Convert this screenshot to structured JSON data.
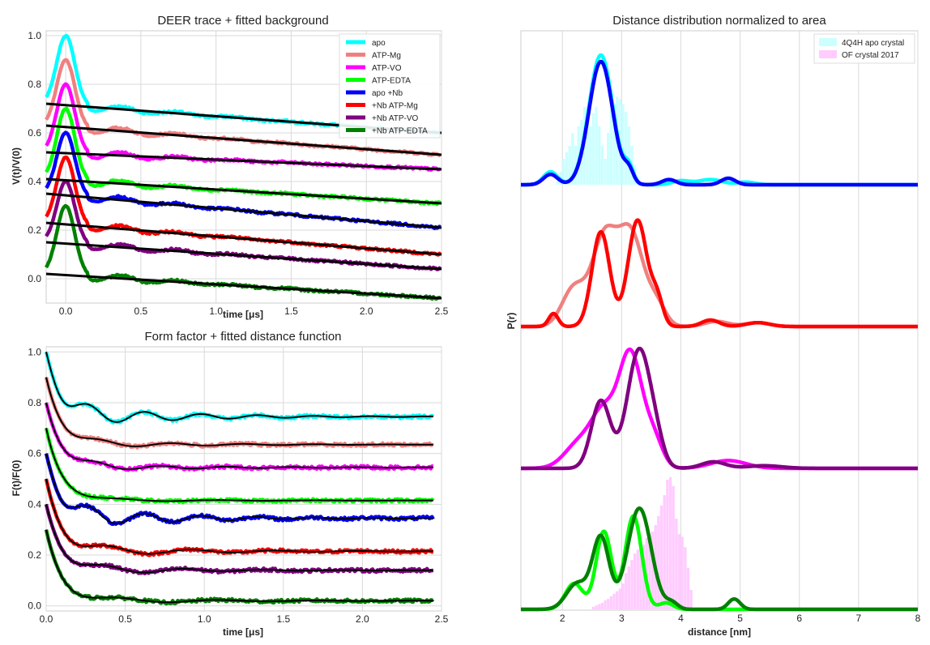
{
  "chart_data": [
    {
      "type": "line",
      "title": "DEER trace + fitted background",
      "xlabel": "time [μs]",
      "ylabel": "V(t)/V(0)",
      "xlim": [
        -0.13,
        2.5
      ],
      "ylim": [
        -0.1,
        1.02
      ],
      "xticks": [
        "0.0",
        "0.5",
        "1.0",
        "1.5",
        "2.0",
        "2.5"
      ],
      "yticks": [
        "0.0",
        "0.2",
        "0.4",
        "0.6",
        "0.8",
        "1.0"
      ],
      "legend_position": "top-right",
      "series": [
        {
          "name": "apo",
          "color": "#00ffff",
          "peak": 1.0,
          "baseline_start": 0.72,
          "baseline_end": 0.6,
          "mod_depth": 0.25
        },
        {
          "name": "ATP-Mg",
          "color": "#f08080",
          "peak": 0.9,
          "baseline_start": 0.63,
          "baseline_end": 0.51,
          "mod_depth": 0.27
        },
        {
          "name": "ATP-VO",
          "color": "#ff00ff",
          "peak": 0.8,
          "baseline_start": 0.52,
          "baseline_end": 0.45,
          "mod_depth": 0.3
        },
        {
          "name": "ATP-EDTA",
          "color": "#00ff00",
          "peak": 0.7,
          "baseline_start": 0.41,
          "baseline_end": 0.31,
          "mod_depth": 0.3
        },
        {
          "name": "apo +Nb",
          "color": "#0000ff",
          "peak": 0.6,
          "baseline_start": 0.35,
          "baseline_end": 0.21,
          "mod_depth": 0.27
        },
        {
          "name": "+Nb ATP-Mg",
          "color": "#ff0000",
          "peak": 0.5,
          "baseline_start": 0.23,
          "baseline_end": 0.1,
          "mod_depth": 0.3
        },
        {
          "name": "+Nb ATP-VO",
          "color": "#800080",
          "peak": 0.4,
          "baseline_start": 0.15,
          "baseline_end": 0.04,
          "mod_depth": 0.27
        },
        {
          "name": "+Nb ATP-EDTA",
          "color": "#008000",
          "peak": 0.3,
          "baseline_start": 0.02,
          "baseline_end": -0.08,
          "mod_depth": 0.29
        }
      ],
      "fit_color": "#000000",
      "fit_label": "fitted background"
    },
    {
      "type": "line",
      "title": "Form factor + fitted distance function",
      "xlabel": "time [μs]",
      "ylabel": "F(t)/F(0)",
      "xlim": [
        0.0,
        2.5
      ],
      "ylim": [
        -0.02,
        1.02
      ],
      "xticks": [
        "0.0",
        "0.5",
        "1.0",
        "1.5",
        "2.0",
        "2.5"
      ],
      "yticks": [
        "0.0",
        "0.2",
        "0.4",
        "0.6",
        "0.8",
        "1.0"
      ],
      "series": [
        {
          "name": "apo",
          "color": "#00ffff",
          "start": 1.0,
          "plateau": 0.745,
          "osc_freq": 2.8,
          "osc_amp": 0.05
        },
        {
          "name": "ATP-Mg",
          "color": "#f08080",
          "start": 0.9,
          "plateau": 0.635,
          "osc_freq": 2.2,
          "osc_amp": 0.02
        },
        {
          "name": "ATP-VO",
          "color": "#ff00ff",
          "start": 0.8,
          "plateau": 0.545,
          "osc_freq": 2.4,
          "osc_amp": 0.02
        },
        {
          "name": "ATP-EDTA",
          "color": "#00ff00",
          "start": 0.7,
          "plateau": 0.415,
          "osc_freq": 1.6,
          "osc_amp": 0.01
        },
        {
          "name": "apo +Nb",
          "color": "#0000ff",
          "start": 0.6,
          "plateau": 0.345,
          "osc_freq": 2.8,
          "osc_amp": 0.05
        },
        {
          "name": "+Nb ATP-Mg",
          "color": "#ff0000",
          "start": 0.5,
          "plateau": 0.215,
          "osc_freq": 1.9,
          "osc_amp": 0.03
        },
        {
          "name": "+Nb ATP-VO",
          "color": "#800080",
          "start": 0.4,
          "plateau": 0.14,
          "osc_freq": 2.0,
          "osc_amp": 0.025
        },
        {
          "name": "+Nb ATP-EDTA",
          "color": "#008000",
          "start": 0.3,
          "plateau": 0.02,
          "osc_freq": 1.6,
          "osc_amp": 0.02
        }
      ],
      "fit_color": "#000000",
      "fit_label": "fitted distance function"
    },
    {
      "type": "line",
      "title": "Distance distribution normalized to area",
      "xlabel": "distance [nm]",
      "ylabel": "P(r)",
      "xlim": [
        1.3,
        8.0
      ],
      "xticks": [
        "2",
        "3",
        "4",
        "5",
        "6",
        "7",
        "8"
      ],
      "legend_position": "top-right",
      "legend": [
        "4Q4H apo crystal",
        "OF crystal 2017"
      ],
      "crystal_colors": [
        "#ccffff",
        "#ffccff"
      ],
      "panels": [
        {
          "series": [
            {
              "name": "apo",
              "color": "#00ffff",
              "peaks": [
                [
                  1.8,
                  0.12,
                  0.1
                ],
                [
                  2.65,
                  0.2,
                  1.0
                ],
                [
                  3.12,
                  0.08,
                  0.12
                ],
                [
                  4.0,
                  0.15,
                  0.03
                ],
                [
                  4.5,
                  0.2,
                  0.04
                ],
                [
                  5.1,
                  0.15,
                  0.02
                ]
              ]
            },
            {
              "name": "apo +Nb",
              "color": "#0000ff",
              "peaks": [
                [
                  1.8,
                  0.12,
                  0.08
                ],
                [
                  2.65,
                  0.2,
                  0.95
                ],
                [
                  3.12,
                  0.08,
                  0.1
                ],
                [
                  3.8,
                  0.12,
                  0.04
                ],
                [
                  4.8,
                  0.12,
                  0.05
                ]
              ]
            }
          ],
          "crystal": {
            "name": "4Q4H apo crystal",
            "color": "#ccffff",
            "bins_start": 1.9,
            "bins_width": 0.05,
            "heights": [
              0.05,
              0.1,
              0.2,
              0.25,
              0.3,
              0.4,
              0.3,
              0.45,
              0.5,
              0.6,
              0.5,
              0.45,
              0.55,
              0.6,
              0.45,
              0.3,
              0.2,
              0.4,
              0.58,
              0.62,
              0.68,
              0.66,
              0.62,
              0.56,
              0.45,
              0.3,
              0.15,
              0.05
            ]
          }
        },
        {
          "series": [
            {
              "name": "ATP-Mg",
              "color": "#f08080",
              "peaks": [
                [
                  2.2,
                  0.2,
                  0.3
                ],
                [
                  2.7,
                  0.2,
                  0.65
                ],
                [
                  3.15,
                  0.22,
                  0.72
                ],
                [
                  3.6,
                  0.15,
                  0.15
                ],
                [
                  4.6,
                  0.2,
                  0.04
                ],
                [
                  5.3,
                  0.2,
                  0.03
                ]
              ]
            },
            {
              "name": "+Nb ATP-Mg",
              "color": "#ff0000",
              "peaks": [
                [
                  1.85,
                  0.08,
                  0.1
                ],
                [
                  2.65,
                  0.15,
                  0.73
                ],
                [
                  3.27,
                  0.16,
                  0.82
                ],
                [
                  3.6,
                  0.1,
                  0.2
                ],
                [
                  4.5,
                  0.15,
                  0.05
                ],
                [
                  5.3,
                  0.2,
                  0.03
                ]
              ]
            }
          ]
        },
        {
          "series": [
            {
              "name": "ATP-VO",
              "color": "#ff00ff",
              "peaks": [
                [
                  2.3,
                  0.25,
                  0.2
                ],
                [
                  2.7,
                  0.2,
                  0.38
                ],
                [
                  3.15,
                  0.2,
                  0.88
                ],
                [
                  3.55,
                  0.15,
                  0.2
                ],
                [
                  4.8,
                  0.3,
                  0.06
                ]
              ]
            },
            {
              "name": "+Nb ATP-VO",
              "color": "#800080",
              "peaks": [
                [
                  2.65,
                  0.16,
                  0.52
                ],
                [
                  3.3,
                  0.2,
                  0.92
                ],
                [
                  3.6,
                  0.12,
                  0.1
                ],
                [
                  4.55,
                  0.2,
                  0.05
                ],
                [
                  5.4,
                  0.3,
                  0.02
                ]
              ]
            }
          ]
        },
        {
          "series": [
            {
              "name": "ATP-EDTA",
              "color": "#00ff00",
              "peaks": [
                [
                  2.2,
                  0.15,
                  0.2
                ],
                [
                  2.7,
                  0.13,
                  0.6
                ],
                [
                  3.2,
                  0.14,
                  0.72
                ],
                [
                  3.75,
                  0.12,
                  0.05
                ]
              ]
            },
            {
              "name": "+Nb ATP-EDTA",
              "color": "#008000",
              "peaks": [
                [
                  2.25,
                  0.18,
                  0.2
                ],
                [
                  2.65,
                  0.14,
                  0.55
                ],
                [
                  3.3,
                  0.2,
                  0.78
                ],
                [
                  3.85,
                  0.1,
                  0.05
                ],
                [
                  4.9,
                  0.1,
                  0.08
                ]
              ]
            }
          ],
          "crystal": {
            "name": "OF crystal 2017",
            "color": "#ffccff",
            "bins_start": 2.5,
            "bins_width": 0.05,
            "heights": [
              0.02,
              0.03,
              0.04,
              0.05,
              0.07,
              0.08,
              0.1,
              0.12,
              0.14,
              0.16,
              0.2,
              0.28,
              0.33,
              0.38,
              0.43,
              0.46,
              0.48,
              0.5,
              0.55,
              0.58,
              0.6,
              0.65,
              0.72,
              0.8,
              0.88,
              1.0,
              1.02,
              0.95,
              0.7,
              0.58,
              0.56,
              0.48,
              0.32,
              0.15
            ]
          }
        }
      ]
    }
  ]
}
